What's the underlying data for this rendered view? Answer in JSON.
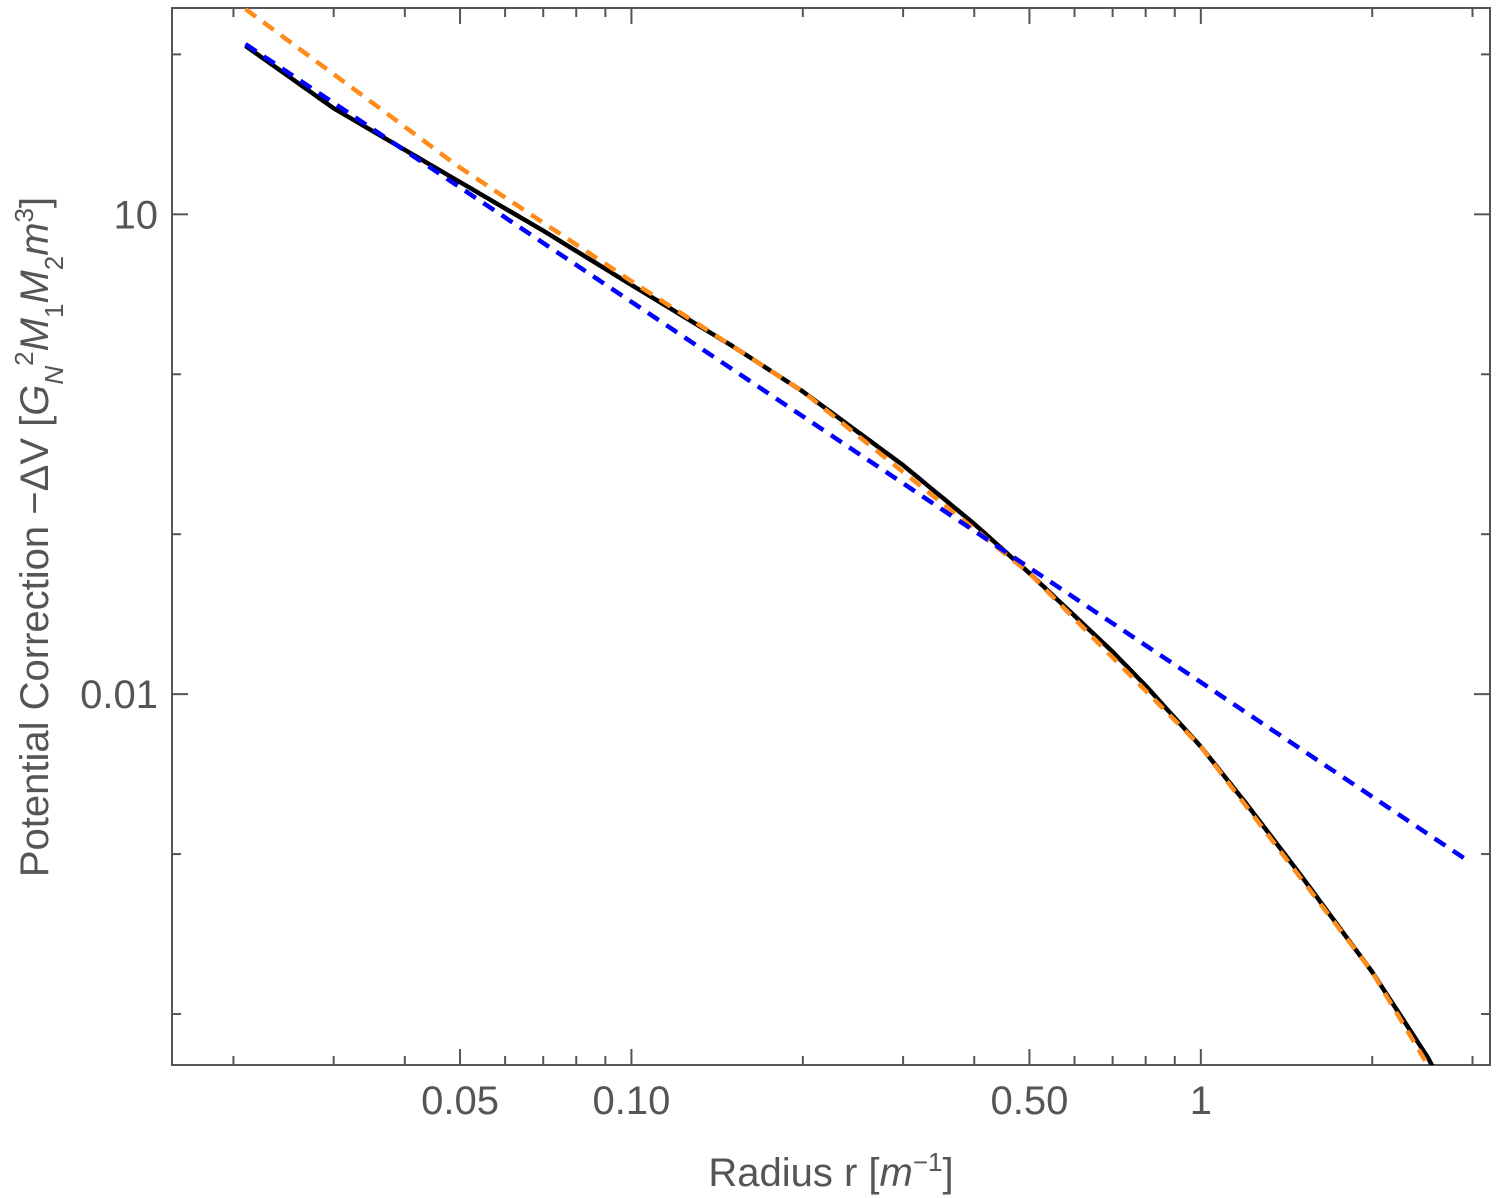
{
  "chart_data": {
    "type": "line",
    "title": "",
    "x_scale": "log",
    "y_scale": "log",
    "xlabel": "Radius  r [m⁻¹]",
    "ylabel": "Potential Correction −ΔV  [G_N² M₁ M₂ m³]",
    "xlabel_parts": {
      "main": "Radius  r [",
      "var": "m",
      "sup": "−1",
      "end": "]"
    },
    "ylabel_parts": {
      "main": "Potential Correction −ΔV  [",
      "g": "G",
      "g_sub": "N",
      "g_sup": "2",
      "m1": "M",
      "m1_sub": "1",
      "m2": "M",
      "m2_sub": "2",
      "m3": "m",
      "m3_sup": "3",
      "end": "]"
    },
    "xlim": [
      0.0156,
      3.22
    ],
    "ylim": [
      4.8e-05,
      195
    ],
    "x_ticks": [
      {
        "value": 0.05,
        "label": "0.05"
      },
      {
        "value": 0.1,
        "label": "0.10"
      },
      {
        "value": 0.5,
        "label": "0.50"
      },
      {
        "value": 1,
        "label": "1"
      }
    ],
    "y_ticks": [
      {
        "value": 10,
        "label": "10"
      },
      {
        "value": 0.01,
        "label": "0.01"
      }
    ],
    "grid": false,
    "legend": "none",
    "series": [
      {
        "color": "#000000",
        "style": "solid",
        "points": [
          [
            0.021,
            113
          ],
          [
            0.03,
            46
          ],
          [
            0.05,
            15.9
          ],
          [
            0.07,
            7.9
          ],
          [
            0.1,
            3.62
          ],
          [
            0.15,
            1.51
          ],
          [
            0.2,
            0.78
          ],
          [
            0.3,
            0.27
          ],
          [
            0.4,
            0.116
          ],
          [
            0.5,
            0.057
          ],
          [
            0.6,
            0.0309
          ],
          [
            0.7,
            0.0184
          ],
          [
            0.8,
            0.0113
          ],
          [
            1.0,
            0.0047
          ],
          [
            1.2,
            0.00208
          ],
          [
            1.5,
            0.000733
          ],
          [
            2.0,
            0.000183
          ],
          [
            2.5,
            5.4e-05
          ],
          [
            2.9,
            2e-05
          ]
        ]
      },
      {
        "color": "#ff8c1a",
        "style": "dashed",
        "points": [
          [
            0.021,
            192
          ],
          [
            0.05,
            19.6
          ],
          [
            0.1,
            3.82
          ],
          [
            0.2,
            0.78
          ],
          [
            0.5,
            0.057
          ],
          [
            1.0,
            0.0047
          ],
          [
            2.0,
            0.000183
          ],
          [
            2.9,
            2e-05
          ]
        ]
      },
      {
        "color": "#0000ff",
        "style": "dashed",
        "points": [
          [
            0.021,
            116
          ],
          [
            2.9,
            0.000943
          ]
        ]
      }
    ]
  }
}
